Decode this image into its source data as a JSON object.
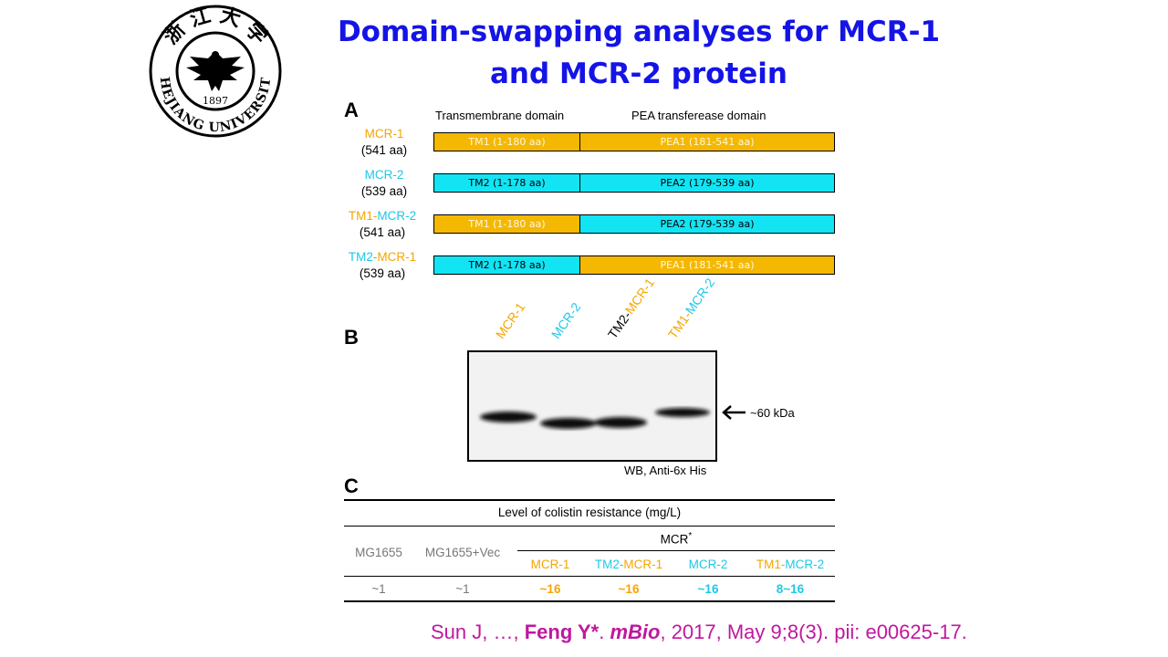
{
  "title": "Domain-swapping analyses for MCR-1 and MCR-2 protein",
  "logo": {
    "chars": "浙 江 大 学",
    "year": "1897",
    "text": "ZHEJIANG UNIVERSITY"
  },
  "panel_a": {
    "letter": "A",
    "header_tm": "Transmembrane domain",
    "header_pea": "PEA transferease domain",
    "proteins": [
      {
        "name_parts": [
          {
            "text": "MCR-1",
            "color": "orange"
          }
        ],
        "length": "(541 aa)",
        "segments": [
          {
            "label": "TM1 (1-180 aa)",
            "color": "orange"
          },
          {
            "label": "PEA1 (181-541 aa)",
            "color": "orange"
          }
        ]
      },
      {
        "name_parts": [
          {
            "text": "MCR-2",
            "color": "cyan"
          }
        ],
        "length": "(539 aa)",
        "segments": [
          {
            "label": "TM2 (1-178 aa)",
            "color": "cyan"
          },
          {
            "label": "PEA2 (179-539 aa)",
            "color": "cyan"
          }
        ]
      },
      {
        "name_parts": [
          {
            "text": "TM1-",
            "color": "orange"
          },
          {
            "text": "MCR-2",
            "color": "cyan"
          }
        ],
        "length": "(541 aa)",
        "segments": [
          {
            "label": "TM1 (1-180 aa)",
            "color": "orange"
          },
          {
            "label": "PEA2 (179-539 aa)",
            "color": "cyan"
          }
        ]
      },
      {
        "name_parts": [
          {
            "text": "TM2-",
            "color": "cyan"
          },
          {
            "text": "MCR-1",
            "color": "orange"
          }
        ],
        "length": "(539 aa)",
        "segments": [
          {
            "label": "TM2 (1-178 aa)",
            "color": "cyan"
          },
          {
            "label": "PEA1 (181-541 aa)",
            "color": "orange"
          }
        ]
      }
    ]
  },
  "panel_b": {
    "letter": "B",
    "lanes": [
      {
        "parts": [
          {
            "text": "MCR-1",
            "color": "orange"
          }
        ]
      },
      {
        "parts": [
          {
            "text": "MCR-2",
            "color": "cyan"
          }
        ]
      },
      {
        "parts": [
          {
            "text": "TM2-",
            "color": "black"
          },
          {
            "text": "MCR-1",
            "color": "orange"
          }
        ]
      },
      {
        "parts": [
          {
            "text": "TM1-",
            "color": "orange"
          },
          {
            "text": "MCR-2",
            "color": "cyan"
          }
        ]
      }
    ],
    "marker": "~60 kDa",
    "method": "WB, Anti-6x His"
  },
  "panel_c": {
    "letter": "C",
    "header": "Level of colistin resistance (mg/L)",
    "mcr_group": "MCR",
    "mcr_sup": "*",
    "columns": [
      {
        "parts": [
          {
            "text": "MG1655",
            "color": "gray"
          }
        ]
      },
      {
        "parts": [
          {
            "text": "MG1655+Vec",
            "color": "gray"
          }
        ]
      },
      {
        "parts": [
          {
            "text": "MCR-1",
            "color": "orange"
          }
        ]
      },
      {
        "parts": [
          {
            "text": "TM2-",
            "color": "cyan"
          },
          {
            "text": "MCR-1",
            "color": "orange"
          }
        ]
      },
      {
        "parts": [
          {
            "text": "MCR-2",
            "color": "cyan"
          }
        ]
      },
      {
        "parts": [
          {
            "text": "TM1-",
            "color": "orange"
          },
          {
            "text": "MCR-2",
            "color": "cyan"
          }
        ]
      }
    ],
    "values": [
      {
        "text": "~1",
        "color": "gray"
      },
      {
        "text": "~1",
        "color": "gray"
      },
      {
        "text": "~16",
        "color": "orange"
      },
      {
        "text": "~16",
        "color": "orange"
      },
      {
        "text": "~16",
        "color": "cyan"
      },
      {
        "text": "8~16",
        "color": "cyan"
      }
    ]
  },
  "citation": {
    "pre": "Sun J, …, ",
    "author": "Feng Y*",
    "dot": ". ",
    "journal": "mBio",
    "post": ", 2017, May 9;8(3). pii: e00625-17."
  },
  "colors": {
    "orange": "#f5a500",
    "cyan": "#1ec8e6",
    "title": "#1414e6",
    "citation": "#c0179e"
  }
}
